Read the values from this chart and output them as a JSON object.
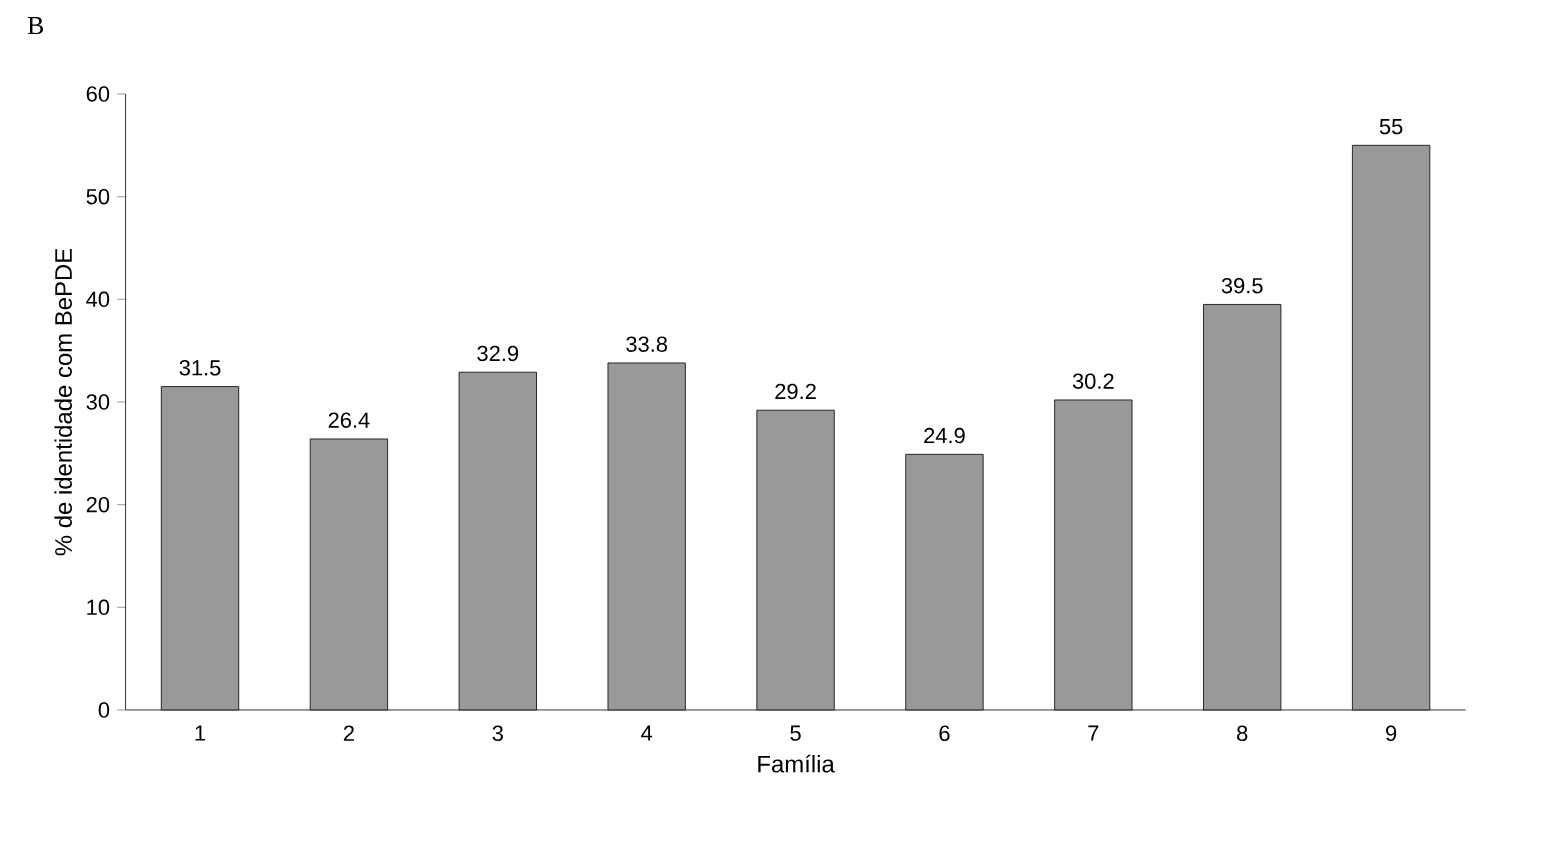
{
  "chart_data": {
    "type": "bar",
    "annotations": [
      "B"
    ],
    "xlabel": "Família",
    "ylabel": "% de identidade com BePDE",
    "categories": [
      "1",
      "2",
      "3",
      "4",
      "5",
      "6",
      "7",
      "8",
      "9"
    ],
    "values": [
      31.5,
      26.4,
      32.9,
      33.8,
      29.2,
      24.9,
      30.2,
      39.5,
      55
    ],
    "color": "#999999",
    "ylim": [
      0,
      60
    ],
    "yticks": [
      0,
      10,
      20,
      30,
      40,
      50,
      60
    ],
    "data_labels": true,
    "grid": false
  }
}
